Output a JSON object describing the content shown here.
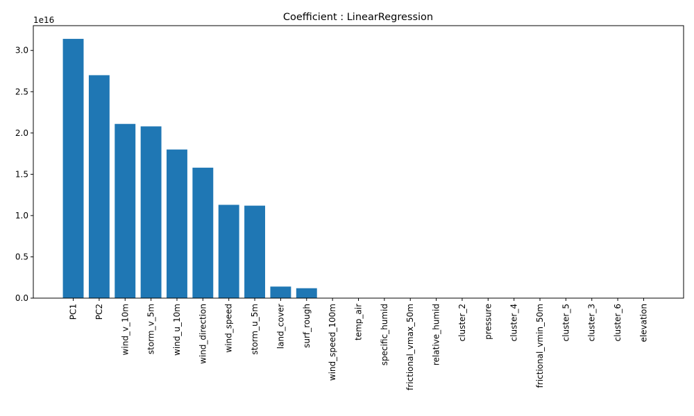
{
  "chart_data": {
    "type": "bar",
    "title": "Coefficient : LinearRegression",
    "xlabel": "",
    "ylabel": "",
    "scale_label": "1e16",
    "categories": [
      "PC1",
      "PC2",
      "wind_v_10m",
      "storm_v_5m",
      "wind_u_10m",
      "wind_direction",
      "wind_speed",
      "storm_u_5m",
      "land_cover",
      "surf_rough",
      "wind_speed_100m",
      "temp_air",
      "specific_humid",
      "frictional_vmax_50m",
      "relative_humid",
      "cluster_2",
      "pressure",
      "cluster_4",
      "frictional_vmin_50m",
      "cluster_5",
      "cluster_3",
      "cluster_6",
      "elevation"
    ],
    "values": [
      3.14e+16,
      2.7e+16,
      2.11e+16,
      2.08e+16,
      1.8e+16,
      1.58e+16,
      1.13e+16,
      1.12e+16,
      1400000000000000.0,
      1200000000000000.0,
      0,
      0,
      0,
      0,
      0,
      0,
      0,
      0,
      0,
      0,
      0,
      0,
      0
    ],
    "ylim": [
      0,
      3.3e+16
    ],
    "yticks": [
      0.0,
      0.5,
      1.0,
      1.5,
      2.0,
      2.5,
      3.0
    ],
    "ytick_labels": [
      "0.0",
      "0.5",
      "1.0",
      "1.5",
      "2.0",
      "2.5",
      "3.0"
    ],
    "bar_color": "#1f77b4",
    "grid": false,
    "legend": "none"
  }
}
